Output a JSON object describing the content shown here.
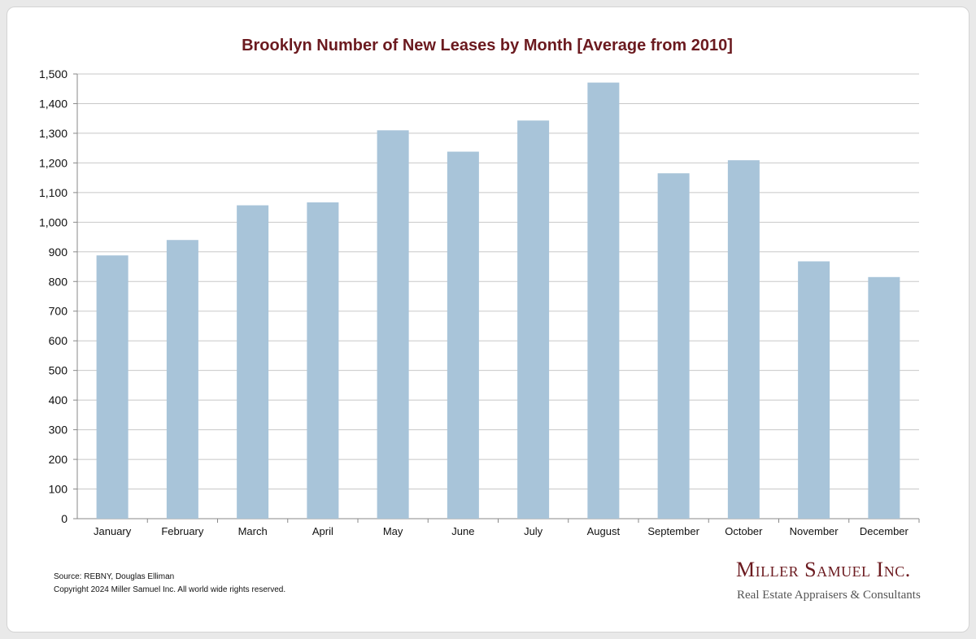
{
  "chart_data": {
    "type": "bar",
    "title": "Brooklyn Number of New Leases by Month [Average from 2010]",
    "categories": [
      "January",
      "February",
      "March",
      "April",
      "May",
      "June",
      "July",
      "August",
      "September",
      "October",
      "November",
      "December"
    ],
    "values": [
      888,
      940,
      1057,
      1067,
      1310,
      1238,
      1343,
      1471,
      1165,
      1209,
      868,
      815
    ],
    "ylim": [
      0,
      1500
    ],
    "yticks": [
      0,
      100,
      200,
      300,
      400,
      500,
      600,
      700,
      800,
      900,
      1000,
      1100,
      1200,
      1300,
      1400,
      1500
    ],
    "ytick_labels": [
      "0",
      "100",
      "200",
      "300",
      "400",
      "500",
      "600",
      "700",
      "800",
      "900",
      "1,000",
      "1,100",
      "1,200",
      "1,300",
      "1,400",
      "1,500"
    ],
    "grid": true,
    "legend": "none",
    "bar_color": "#a8c4d9"
  },
  "footer": {
    "source": "Source: REBNY, Douglas Elliman",
    "copyright": "Copyright 2024 Miller Samuel Inc.  All world wide rights reserved.",
    "brand_name": "Miller Samuel Inc.",
    "brand_tagline": "Real Estate Appraisers & Consultants"
  },
  "colors": {
    "title": "#6b1a1f",
    "grid": "#c8c8c8",
    "axis": "#888888"
  }
}
